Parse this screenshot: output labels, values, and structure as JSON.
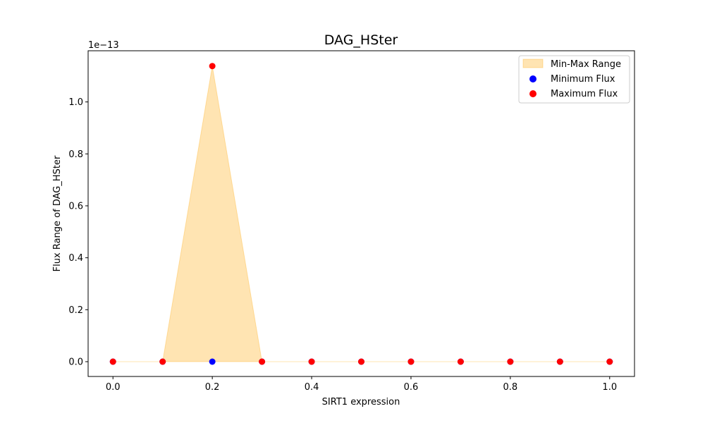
{
  "chart_data": {
    "type": "scatter",
    "title": "DAG_HSter",
    "xlabel": "SIRT1 expression",
    "ylabel": "Flux Range of DAG_HSter",
    "y_offset_label": "1e−13",
    "xlim": [
      -0.05,
      1.05
    ],
    "ylim": [
      -5.7e-15,
      1.197e-13
    ],
    "x_ticks": [
      0.0,
      0.2,
      0.4,
      0.6,
      0.8,
      1.0
    ],
    "x_tick_labels": [
      "0.0",
      "0.2",
      "0.4",
      "0.6",
      "0.8",
      "1.0"
    ],
    "y_ticks": [
      0.0,
      2e-14,
      4e-14,
      6e-14,
      8e-14,
      1e-13
    ],
    "y_tick_labels": [
      "0.0",
      "0.2",
      "0.4",
      "0.6",
      "0.8",
      "1.0"
    ],
    "x": [
      0.0,
      0.1,
      0.2,
      0.3,
      0.4,
      0.5,
      0.6,
      0.7,
      0.8,
      0.9,
      1.0
    ],
    "series": [
      {
        "name": "Minimum Flux",
        "color": "#0000ff",
        "values": [
          0,
          0,
          0,
          0,
          0,
          0,
          0,
          0,
          0,
          0,
          0
        ]
      },
      {
        "name": "Maximum Flux",
        "color": "#ff0000",
        "values": [
          0,
          0,
          1.138e-13,
          0,
          0,
          0,
          0,
          0,
          0,
          0,
          0
        ]
      }
    ],
    "fill": {
      "name": "Min-Max Range",
      "color": "#ffa500",
      "alpha": 0.3
    },
    "legend": {
      "position": "top-right",
      "entries": [
        "Min-Max Range",
        "Minimum Flux",
        "Maximum Flux"
      ]
    },
    "grid": false
  }
}
